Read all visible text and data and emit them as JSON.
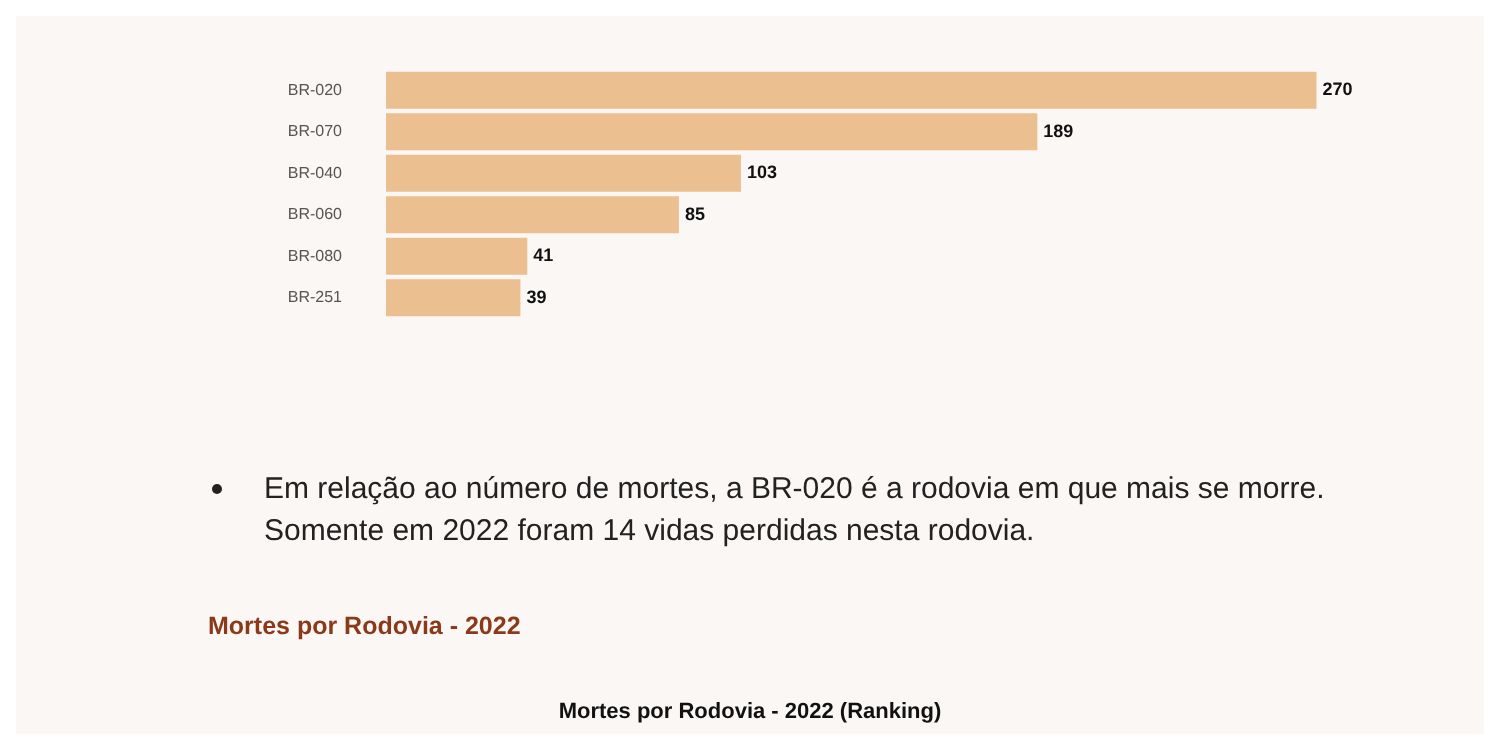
{
  "chart_data": {
    "type": "bar",
    "orientation": "horizontal",
    "categories": [
      "BR-020",
      "BR-070",
      "BR-040",
      "BR-060",
      "BR-080",
      "BR-251"
    ],
    "values": [
      270,
      189,
      103,
      85,
      41,
      39
    ],
    "color": "#ecbf90",
    "data_labels": true,
    "grid": false,
    "legend": false,
    "annotations": [
      "Em relação ao número de mortes, a BR-020 é a rodovia em que mais se morre. Somente em 2022 foram 14 vidas perdidas nesta rodovia.",
      "Mortes por Rodovia - 2022",
      "Mortes por Rodovia - 2022 (Ranking)"
    ]
  }
}
